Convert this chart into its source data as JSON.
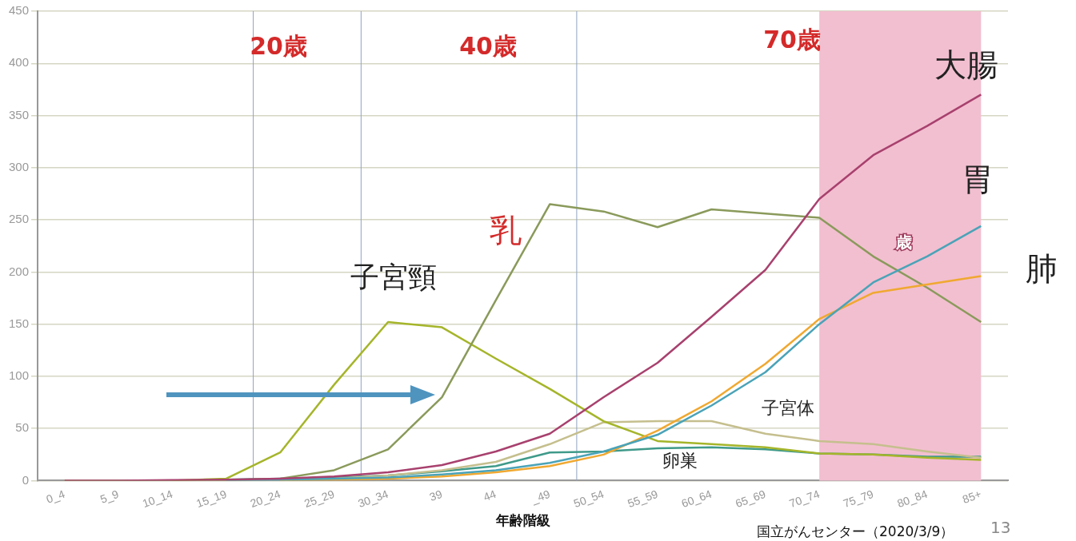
{
  "chart_data": {
    "type": "line",
    "xlabel": "年齢階級",
    "categories": [
      "0_4",
      "5_9",
      "10_14",
      "15_19",
      "20_24",
      "25_29",
      "30_34",
      "39",
      "44",
      "_49",
      "50_54",
      "55_59",
      "60_64",
      "65_69",
      "70_74",
      "75_79",
      "80_84",
      "85+"
    ],
    "series": [
      {
        "name": "大腸",
        "color": "#a8416e",
        "values": [
          0,
          0,
          0.5,
          1,
          2,
          4,
          8,
          15,
          28,
          45,
          80,
          113,
          157,
          202,
          270,
          312,
          340,
          370
        ]
      },
      {
        "name": "胃",
        "color": "#4aa3b8",
        "values": [
          null,
          null,
          null,
          0,
          1,
          2,
          3,
          6,
          10,
          17,
          28,
          44,
          72,
          104,
          150,
          190,
          215,
          244
        ]
      },
      {
        "name": "肺",
        "color": "#f0a830",
        "values": [
          null,
          null,
          null,
          null,
          0.5,
          1,
          2,
          4,
          8,
          14,
          25,
          48,
          76,
          112,
          155,
          180,
          188,
          196
        ]
      },
      {
        "name": "乳",
        "color": "#8a9a5b",
        "values": [
          0,
          0,
          0,
          0.5,
          2,
          10,
          30,
          80,
          173,
          265,
          258,
          243,
          260,
          256,
          252,
          215,
          185,
          152
        ]
      },
      {
        "name": "子宮頸",
        "color": "#a5b52a",
        "values": [
          null,
          null,
          0,
          2,
          27,
          92,
          152,
          147,
          117,
          88,
          57,
          38,
          35,
          32,
          26,
          25,
          22,
          20
        ]
      },
      {
        "name": "子宮体",
        "color": "#c5bf8e",
        "values": [
          0,
          0,
          0,
          0,
          1,
          2,
          5,
          10,
          18,
          35,
          56,
          57,
          57,
          45,
          38,
          35,
          28,
          22
        ]
      },
      {
        "name": "卵巣",
        "color": "#3f9a8a",
        "values": [
          null,
          null,
          null,
          1,
          2,
          3,
          5,
          9,
          14,
          27,
          28,
          31,
          32,
          30,
          26,
          25,
          23,
          23
        ]
      }
    ],
    "ylim": [
      0,
      450
    ],
    "yticks": [
      0,
      50,
      100,
      150,
      200,
      250,
      300,
      350,
      400,
      450
    ],
    "grid": "y",
    "legend": false,
    "marker": "none",
    "line_style": "solid",
    "ref_lines": [
      {
        "axis": "x",
        "value": "20_24",
        "color": "#8fa3c0"
      },
      {
        "axis": "x",
        "value": "30_34",
        "color": "#8fa3c0"
      },
      {
        "axis": "x",
        "value": "50_54",
        "color": "#8fa3c0"
      }
    ],
    "bands": [
      {
        "axis": "x",
        "from": "70_74",
        "to": "85+",
        "color": "#f2bfd0"
      }
    ],
    "annotations": [
      "20歳",
      "40歳",
      "70歳",
      "歳",
      "国立がんセンター（2020/3/9）",
      "13"
    ]
  }
}
